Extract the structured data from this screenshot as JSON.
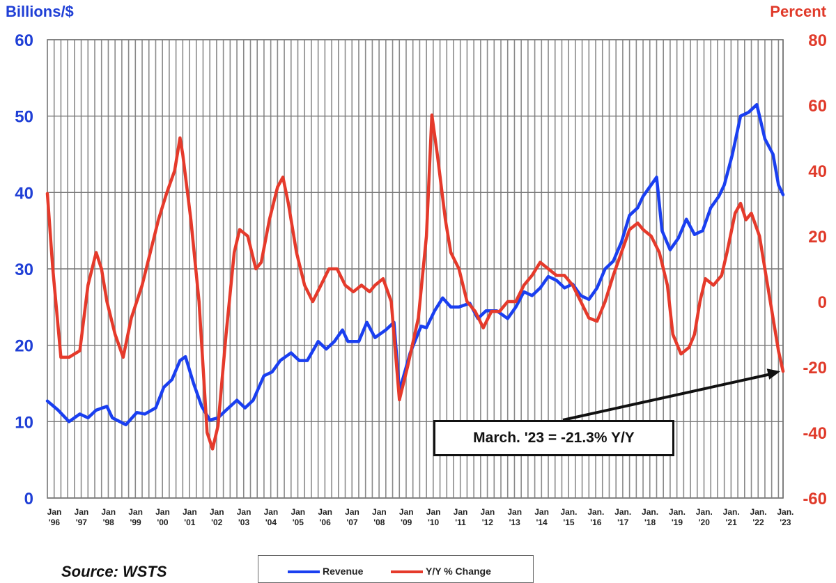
{
  "labels": {
    "left_axis_title": "Billions/$",
    "right_axis_title": "Percent",
    "source": "Source: WSTS",
    "callout": "March. '23 = -21.3% Y/Y"
  },
  "colors": {
    "revenue": "#1a3ff0",
    "yoy": "#e53a2b",
    "left_axis": "#1f3fd6",
    "right_axis": "#e03a2a",
    "grid": "#8a8a8a"
  },
  "chart_data": {
    "type": "line",
    "left_axis": {
      "label": "Billions/$",
      "ylim": [
        0,
        60
      ],
      "ticks": [
        0,
        10,
        20,
        30,
        40,
        50,
        60
      ]
    },
    "right_axis": {
      "label": "Percent",
      "ylim": [
        -60,
        80
      ],
      "ticks": [
        -60,
        -40,
        -20,
        0,
        20,
        40,
        60,
        80
      ]
    },
    "x_axis": {
      "range": [
        1996.0,
        2023.17
      ],
      "ticks": [
        {
          "year": 1996,
          "line1": "Jan",
          "line2": "'96"
        },
        {
          "year": 1997,
          "line1": "Jan",
          "line2": "'97"
        },
        {
          "year": 1998,
          "line1": "Jan",
          "line2": "'98"
        },
        {
          "year": 1999,
          "line1": "Jan",
          "line2": "'99"
        },
        {
          "year": 2000,
          "line1": "Jan",
          "line2": "'00"
        },
        {
          "year": 2001,
          "line1": "Jan",
          "line2": "'01"
        },
        {
          "year": 2002,
          "line1": "Jan",
          "line2": "'02"
        },
        {
          "year": 2003,
          "line1": "Jan",
          "line2": "'03"
        },
        {
          "year": 2004,
          "line1": "Jan",
          "line2": "'04"
        },
        {
          "year": 2005,
          "line1": "Jan",
          "line2": "'05"
        },
        {
          "year": 2006,
          "line1": "Jan",
          "line2": "'06"
        },
        {
          "year": 2007,
          "line1": "Jan",
          "line2": "'07"
        },
        {
          "year": 2008,
          "line1": "Jan",
          "line2": "'08"
        },
        {
          "year": 2009,
          "line1": "Jan",
          "line2": "'09"
        },
        {
          "year": 2010,
          "line1": "Jan",
          "line2": "'10"
        },
        {
          "year": 2011,
          "line1": "Jan",
          "line2": "'11"
        },
        {
          "year": 2012,
          "line1": "Jan",
          "line2": "'12"
        },
        {
          "year": 2013,
          "line1": "Jan",
          "line2": "'13"
        },
        {
          "year": 2014,
          "line1": "Jan",
          "line2": "'14"
        },
        {
          "year": 2015,
          "line1": "Jan.",
          "line2": "'15"
        },
        {
          "year": 2016,
          "line1": "Jan.",
          "line2": "'16"
        },
        {
          "year": 2017,
          "line1": "Jan.",
          "line2": "'17"
        },
        {
          "year": 2018,
          "line1": "Jan.",
          "line2": "'18"
        },
        {
          "year": 2019,
          "line1": "Jan.",
          "line2": "'19"
        },
        {
          "year": 2020,
          "line1": "Jan.",
          "line2": "'20"
        },
        {
          "year": 2021,
          "line1": "Jan.",
          "line2": "'21"
        },
        {
          "year": 2022,
          "line1": "Jan.",
          "line2": "'22"
        },
        {
          "year": 2023,
          "line1": "Jan.",
          "line2": "'23"
        }
      ]
    },
    "grid": true,
    "legend_position": "bottom-center",
    "series": [
      {
        "name": "Revenue",
        "axis": "left",
        "points": [
          [
            1996.0,
            12.7
          ],
          [
            1996.4,
            11.5
          ],
          [
            1996.8,
            10.0
          ],
          [
            1997.2,
            11.0
          ],
          [
            1997.5,
            10.5
          ],
          [
            1997.8,
            11.5
          ],
          [
            1998.2,
            12.0
          ],
          [
            1998.4,
            10.5
          ],
          [
            1998.9,
            9.6
          ],
          [
            1999.3,
            11.2
          ],
          [
            1999.6,
            11.0
          ],
          [
            2000.0,
            11.8
          ],
          [
            2000.3,
            14.5
          ],
          [
            2000.6,
            15.5
          ],
          [
            2000.9,
            18.0
          ],
          [
            2001.1,
            18.5
          ],
          [
            2001.4,
            15.0
          ],
          [
            2001.7,
            12.0
          ],
          [
            2002.0,
            10.2
          ],
          [
            2002.3,
            10.5
          ],
          [
            2002.6,
            11.5
          ],
          [
            2003.0,
            12.8
          ],
          [
            2003.3,
            11.8
          ],
          [
            2003.6,
            12.8
          ],
          [
            2004.0,
            16.0
          ],
          [
            2004.3,
            16.5
          ],
          [
            2004.6,
            18.0
          ],
          [
            2005.0,
            19.0
          ],
          [
            2005.3,
            18.0
          ],
          [
            2005.6,
            18.0
          ],
          [
            2006.0,
            20.5
          ],
          [
            2006.3,
            19.5
          ],
          [
            2006.6,
            20.5
          ],
          [
            2006.9,
            22.0
          ],
          [
            2007.1,
            20.5
          ],
          [
            2007.5,
            20.5
          ],
          [
            2007.8,
            23.0
          ],
          [
            2008.1,
            21.0
          ],
          [
            2008.5,
            22.0
          ],
          [
            2008.8,
            23.0
          ],
          [
            2009.0,
            14.0
          ],
          [
            2009.4,
            19.0
          ],
          [
            2009.8,
            22.5
          ],
          [
            2010.0,
            22.3
          ],
          [
            2010.3,
            24.5
          ],
          [
            2010.6,
            26.2
          ],
          [
            2010.9,
            25.0
          ],
          [
            2011.2,
            25.0
          ],
          [
            2011.6,
            25.5
          ],
          [
            2011.9,
            23.5
          ],
          [
            2012.2,
            24.5
          ],
          [
            2012.6,
            24.5
          ],
          [
            2013.0,
            23.5
          ],
          [
            2013.3,
            25.0
          ],
          [
            2013.6,
            27.0
          ],
          [
            2013.9,
            26.5
          ],
          [
            2014.2,
            27.5
          ],
          [
            2014.5,
            29.0
          ],
          [
            2014.8,
            28.5
          ],
          [
            2015.1,
            27.5
          ],
          [
            2015.4,
            28.0
          ],
          [
            2015.7,
            26.5
          ],
          [
            2016.0,
            26.0
          ],
          [
            2016.3,
            27.5
          ],
          [
            2016.6,
            30.0
          ],
          [
            2016.9,
            31.0
          ],
          [
            2017.2,
            33.5
          ],
          [
            2017.5,
            37.0
          ],
          [
            2017.8,
            38.0
          ],
          [
            2018.0,
            39.5
          ],
          [
            2018.3,
            41.0
          ],
          [
            2018.5,
            42.0
          ],
          [
            2018.7,
            35.0
          ],
          [
            2019.0,
            32.5
          ],
          [
            2019.3,
            34.0
          ],
          [
            2019.6,
            36.5
          ],
          [
            2019.9,
            34.5
          ],
          [
            2020.2,
            35.0
          ],
          [
            2020.5,
            38.0
          ],
          [
            2020.8,
            39.5
          ],
          [
            2021.0,
            41.0
          ],
          [
            2021.3,
            45.0
          ],
          [
            2021.6,
            50.0
          ],
          [
            2021.9,
            50.5
          ],
          [
            2022.2,
            51.5
          ],
          [
            2022.5,
            47.0
          ],
          [
            2022.8,
            45.0
          ],
          [
            2023.0,
            41.0
          ],
          [
            2023.17,
            39.7
          ]
        ]
      },
      {
        "name": "Y/Y % Change",
        "axis": "right",
        "points": [
          [
            1996.0,
            33
          ],
          [
            1996.2,
            10
          ],
          [
            1996.5,
            -17
          ],
          [
            1996.8,
            -17
          ],
          [
            1997.2,
            -15
          ],
          [
            1997.5,
            5
          ],
          [
            1997.8,
            15
          ],
          [
            1998.0,
            10
          ],
          [
            1998.2,
            0
          ],
          [
            1998.5,
            -10
          ],
          [
            1998.8,
            -17
          ],
          [
            1999.1,
            -5
          ],
          [
            1999.5,
            5
          ],
          [
            1999.8,
            15
          ],
          [
            2000.1,
            25
          ],
          [
            2000.4,
            33
          ],
          [
            2000.7,
            40
          ],
          [
            2000.9,
            50
          ],
          [
            2001.0,
            45
          ],
          [
            2001.3,
            25
          ],
          [
            2001.6,
            0
          ],
          [
            2001.9,
            -40
          ],
          [
            2002.1,
            -45
          ],
          [
            2002.3,
            -38
          ],
          [
            2002.6,
            -10
          ],
          [
            2002.9,
            15
          ],
          [
            2003.1,
            22
          ],
          [
            2003.4,
            20
          ],
          [
            2003.7,
            10
          ],
          [
            2003.9,
            12
          ],
          [
            2004.2,
            25
          ],
          [
            2004.5,
            35
          ],
          [
            2004.7,
            38
          ],
          [
            2004.9,
            30
          ],
          [
            2005.2,
            15
          ],
          [
            2005.5,
            5
          ],
          [
            2005.8,
            0
          ],
          [
            2006.1,
            5
          ],
          [
            2006.4,
            10
          ],
          [
            2006.7,
            10
          ],
          [
            2007.0,
            5
          ],
          [
            2007.3,
            3
          ],
          [
            2007.6,
            5
          ],
          [
            2007.9,
            3
          ],
          [
            2008.1,
            5
          ],
          [
            2008.4,
            7
          ],
          [
            2008.7,
            0
          ],
          [
            2009.0,
            -30
          ],
          [
            2009.3,
            -20
          ],
          [
            2009.7,
            -5
          ],
          [
            2010.0,
            20
          ],
          [
            2010.2,
            57
          ],
          [
            2010.4,
            45
          ],
          [
            2010.7,
            25
          ],
          [
            2010.9,
            15
          ],
          [
            2011.2,
            10
          ],
          [
            2011.5,
            0
          ],
          [
            2011.8,
            -3
          ],
          [
            2012.1,
            -8
          ],
          [
            2012.4,
            -3
          ],
          [
            2012.7,
            -3
          ],
          [
            2013.0,
            0
          ],
          [
            2013.3,
            0
          ],
          [
            2013.6,
            5
          ],
          [
            2013.9,
            8
          ],
          [
            2014.2,
            12
          ],
          [
            2014.5,
            10
          ],
          [
            2014.8,
            8
          ],
          [
            2015.1,
            8
          ],
          [
            2015.4,
            5
          ],
          [
            2015.7,
            0
          ],
          [
            2016.0,
            -5
          ],
          [
            2016.3,
            -6
          ],
          [
            2016.6,
            0
          ],
          [
            2016.9,
            8
          ],
          [
            2017.2,
            15
          ],
          [
            2017.5,
            22
          ],
          [
            2017.8,
            24
          ],
          [
            2018.0,
            22
          ],
          [
            2018.3,
            20
          ],
          [
            2018.6,
            15
          ],
          [
            2018.9,
            5
          ],
          [
            2019.1,
            -10
          ],
          [
            2019.4,
            -16
          ],
          [
            2019.7,
            -14
          ],
          [
            2019.9,
            -10
          ],
          [
            2020.1,
            0
          ],
          [
            2020.3,
            7
          ],
          [
            2020.6,
            5
          ],
          [
            2020.9,
            8
          ],
          [
            2021.1,
            15
          ],
          [
            2021.4,
            27
          ],
          [
            2021.6,
            30
          ],
          [
            2021.8,
            25
          ],
          [
            2022.0,
            27
          ],
          [
            2022.3,
            20
          ],
          [
            2022.6,
            5
          ],
          [
            2022.8,
            -5
          ],
          [
            2023.0,
            -15
          ],
          [
            2023.17,
            -21.3
          ]
        ]
      }
    ],
    "annotations": [
      {
        "text": "March. '23 = -21.3% Y/Y",
        "x": 2023.17,
        "y": -21.3,
        "axis": "right"
      }
    ]
  }
}
